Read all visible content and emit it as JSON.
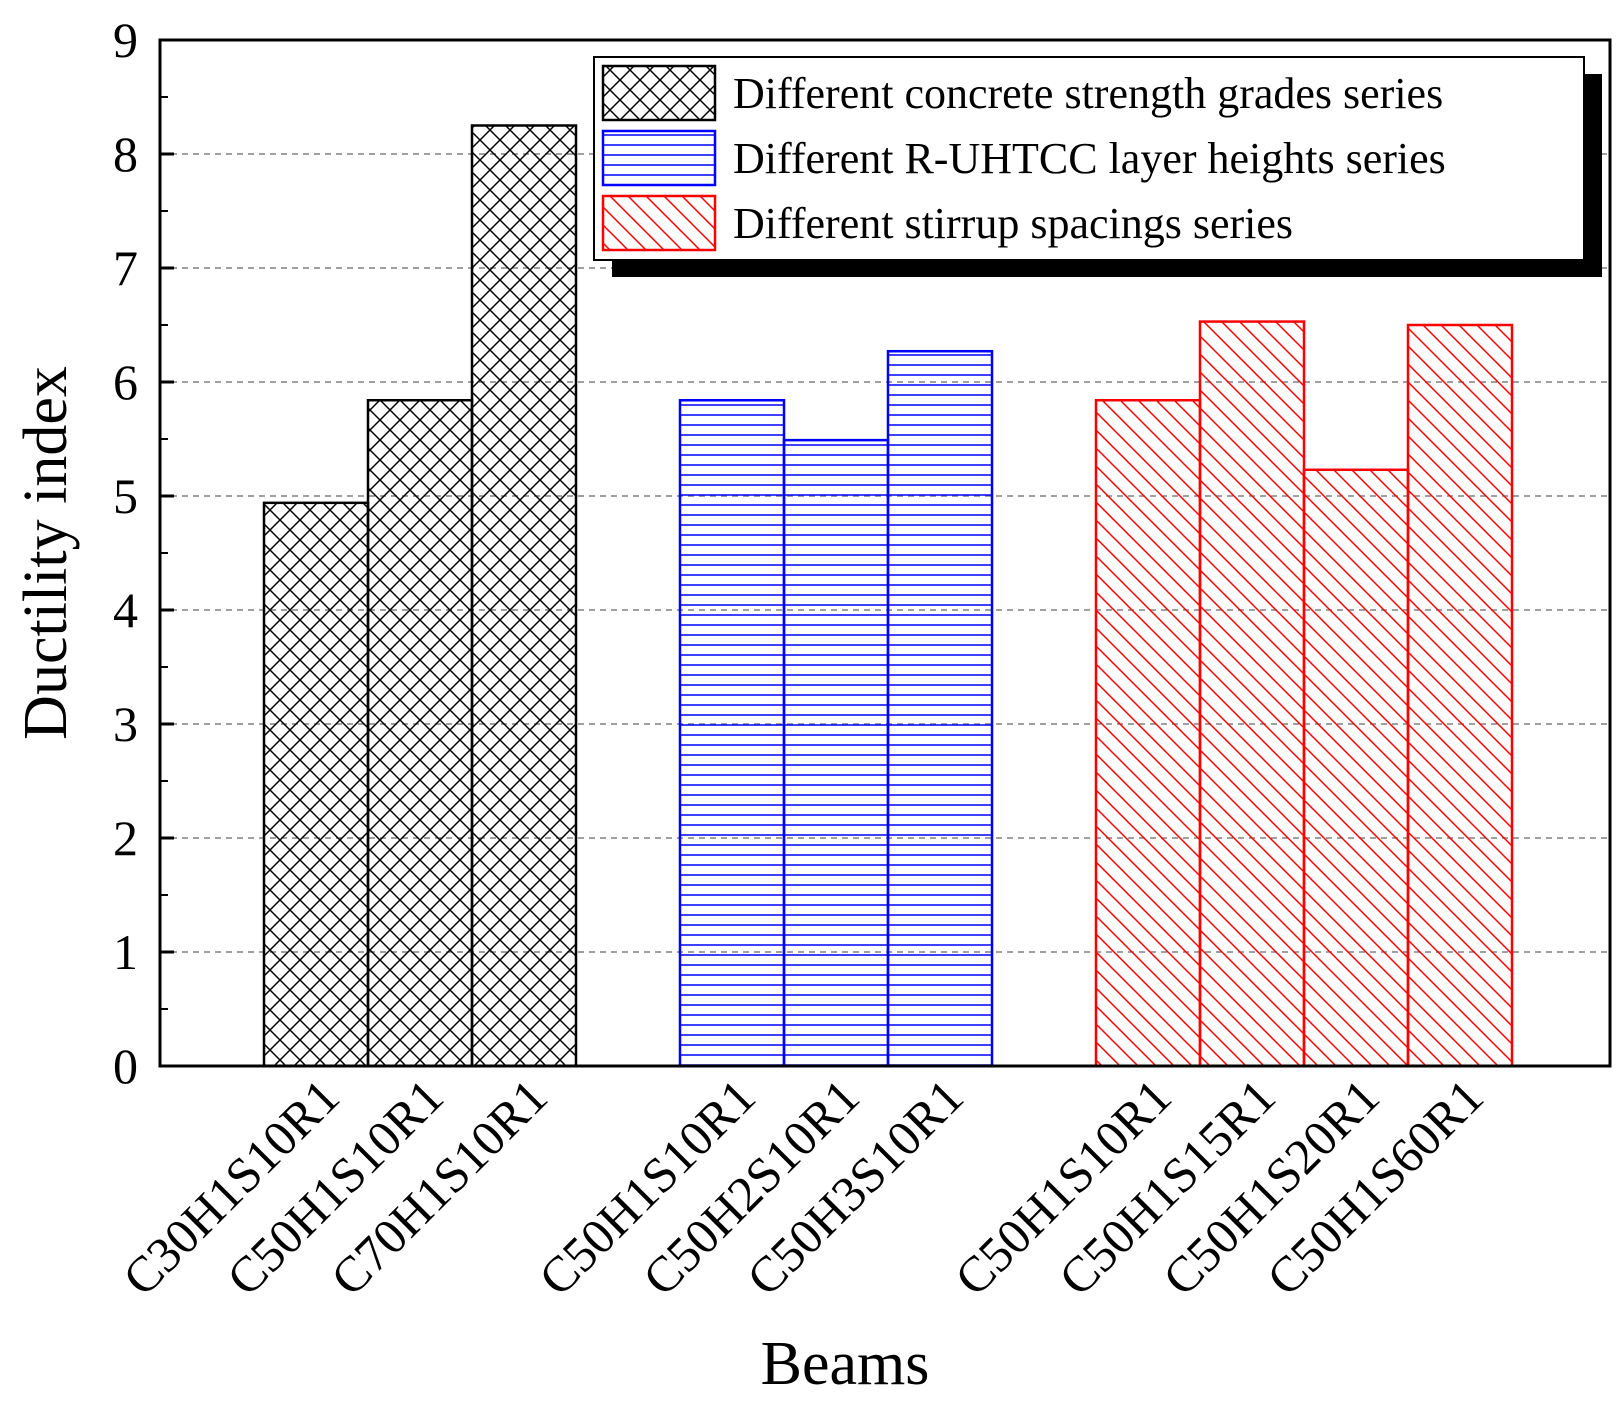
{
  "chart_data": {
    "type": "bar",
    "title": "",
    "xlabel": "Beams",
    "ylabel": "Ductility index",
    "ylim": [
      0,
      9
    ],
    "yticks": [
      0,
      1,
      2,
      3,
      4,
      5,
      6,
      7,
      8,
      9
    ],
    "grid": "horizontal dashed",
    "legend_position": "top-right",
    "series": [
      {
        "name": "Different concrete strength grades series",
        "color": "#000000",
        "pattern": "crosshatch",
        "categories": [
          "C30H1S10R1",
          "C50H1S10R1",
          "C70H1S10R1"
        ],
        "values": [
          4.94,
          5.84,
          8.25
        ]
      },
      {
        "name": "Different R-UHTCC layer heights series",
        "color": "#0000ff",
        "pattern": "horizontal",
        "categories": [
          "C50H1S10R1",
          "C50H2S10R1",
          "C50H3S10R1"
        ],
        "values": [
          5.84,
          5.49,
          6.27
        ]
      },
      {
        "name": "Different stirrup spacings series",
        "color": "#ff0000",
        "pattern": "diagonal",
        "categories": [
          "C50H1S10R1",
          "C50H1S15R1",
          "C50H1S20R1",
          "C50H1S60R1"
        ],
        "values": [
          5.84,
          6.53,
          5.23,
          6.5
        ]
      }
    ]
  }
}
